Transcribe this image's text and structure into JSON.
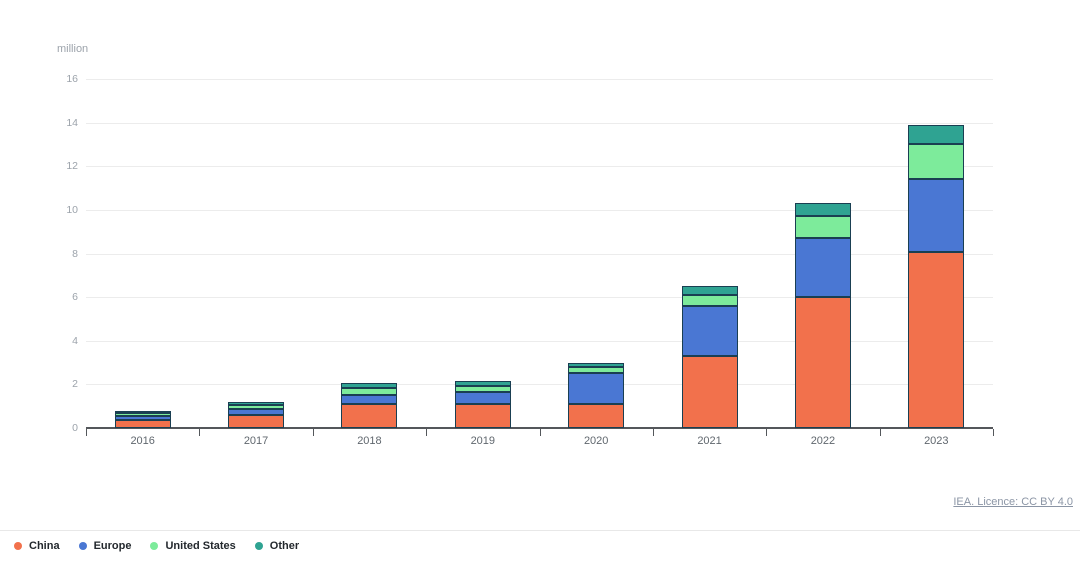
{
  "header": {
    "unit_label": "million"
  },
  "attribution": {
    "text": "IEA. Licence: CC BY 4.0"
  },
  "chart_data": {
    "type": "bar",
    "subtype": "stacked-vertical",
    "title": "",
    "unit": "million",
    "categories": [
      "2016",
      "2017",
      "2018",
      "2019",
      "2020",
      "2021",
      "2022",
      "2023"
    ],
    "series": [
      {
        "name": "China",
        "color": "#F2714C",
        "values": [
          0.35,
          0.6,
          1.1,
          1.1,
          1.1,
          3.3,
          6.0,
          8.05
        ]
      },
      {
        "name": "Europe",
        "color": "#4A77D3",
        "values": [
          0.2,
          0.25,
          0.4,
          0.55,
          1.4,
          2.3,
          2.7,
          3.35
        ]
      },
      {
        "name": "United States",
        "color": "#7DEB9B",
        "values": [
          0.15,
          0.2,
          0.35,
          0.3,
          0.3,
          0.5,
          1.0,
          1.6
        ]
      },
      {
        "name": "Other",
        "color": "#2FA392",
        "values": [
          0.05,
          0.15,
          0.2,
          0.2,
          0.2,
          0.4,
          0.6,
          0.9
        ]
      }
    ],
    "totals": [
      0.75,
      1.2,
      2.05,
      2.15,
      3.0,
      6.5,
      10.3,
      13.9
    ],
    "ylabel": "million",
    "xlabel": "",
    "ylim": [
      0,
      16
    ],
    "yticks": [
      0,
      2,
      4,
      6,
      8,
      10,
      12,
      14,
      16
    ],
    "grid": true,
    "legend_position": "bottom-left",
    "styles": {
      "segment_border": "#1a3f52",
      "axis_color": "#54575b",
      "grid_color": "#ececec",
      "ytick_text": "#9ca3ab",
      "xtick_text": "#60676e"
    }
  }
}
